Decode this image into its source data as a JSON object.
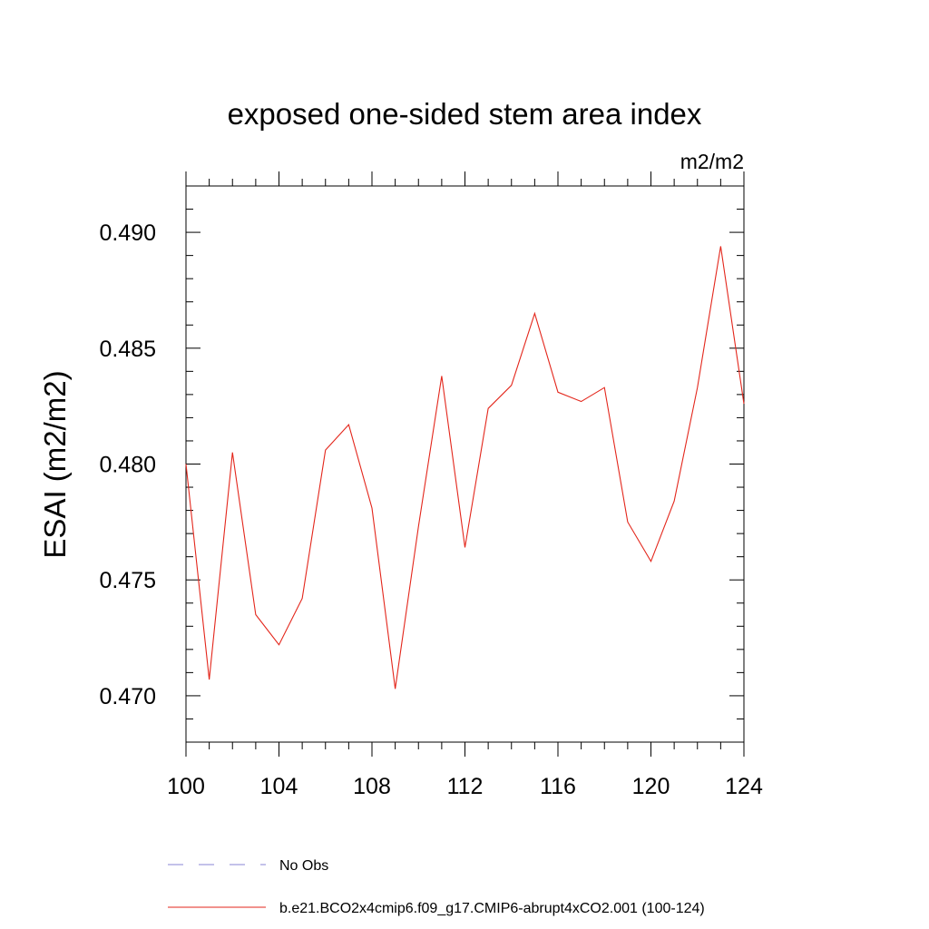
{
  "chart_data": {
    "type": "line",
    "title": "exposed one-sided stem area index",
    "units_label": "m2/m2",
    "ylabel": "ESAI  (m2/m2)",
    "xlabel": "",
    "xlim": [
      100,
      124
    ],
    "ylim": [
      0.468,
      0.492
    ],
    "x_ticks": [
      100,
      104,
      108,
      112,
      116,
      120,
      124
    ],
    "x_tick_labels": [
      "100",
      "104",
      "108",
      "112",
      "116",
      "120",
      "124"
    ],
    "y_ticks": [
      0.47,
      0.475,
      0.48,
      0.485,
      0.49
    ],
    "y_tick_labels": [
      "0.470",
      "0.475",
      "0.480",
      "0.485",
      "0.490"
    ],
    "grid": false,
    "x": [
      100,
      101,
      102,
      103,
      104,
      105,
      106,
      107,
      108,
      109,
      110,
      111,
      112,
      113,
      114,
      115,
      116,
      117,
      118,
      119,
      120,
      121,
      122,
      123,
      124
    ],
    "series": [
      {
        "name": "b.e21.BCO2x4cmip6.f09_g17.CMIP6-abrupt4xCO2.001 (100-124)",
        "color": "#e3261b",
        "dash": "solid",
        "values": [
          0.48,
          0.4707,
          0.4805,
          0.4735,
          0.4722,
          0.4742,
          0.4806,
          0.4817,
          0.4781,
          0.4703,
          0.4773,
          0.4838,
          0.4764,
          0.4824,
          0.4834,
          0.4865,
          0.4831,
          0.4827,
          0.4833,
          0.4775,
          0.4758,
          0.4784,
          0.4833,
          0.4894,
          0.4826
        ]
      }
    ],
    "legend": {
      "placement": "bottom",
      "entries": [
        {
          "label": "No Obs",
          "color": "#8a86d6",
          "dash": "dashed"
        },
        {
          "label": "b.e21.BCO2x4cmip6.f09_g17.CMIP6-abrupt4xCO2.001 (100-124)",
          "color": "#e3261b",
          "dash": "solid"
        }
      ]
    }
  }
}
